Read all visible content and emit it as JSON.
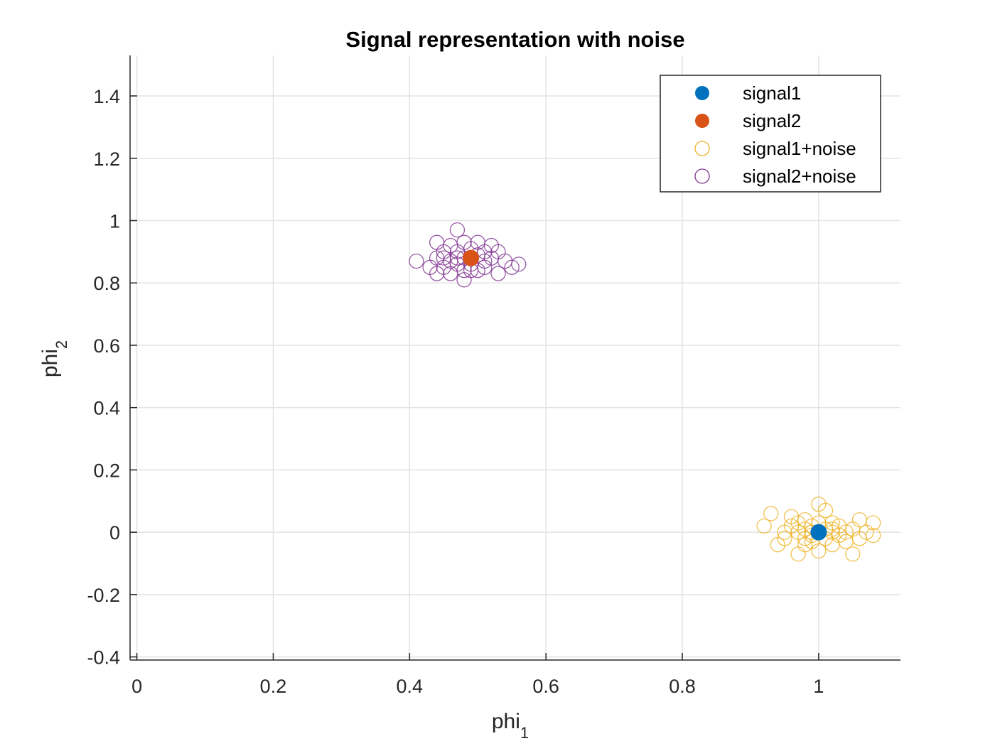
{
  "chart_data": {
    "type": "scatter",
    "title": "Signal representation with noise",
    "xlabel": {
      "base": "phi",
      "sub": "1"
    },
    "ylabel": {
      "base": "phi",
      "sub": "2"
    },
    "xlim": [
      -0.01,
      1.12
    ],
    "ylim": [
      -0.41,
      1.53
    ],
    "xticks": [
      0,
      0.2,
      0.4,
      0.6,
      0.8,
      1
    ],
    "xtick_labels": [
      "0",
      "0.2",
      "0.4",
      "0.6",
      "0.8",
      "1"
    ],
    "yticks": [
      -0.4,
      -0.2,
      0,
      0.2,
      0.4,
      0.6,
      0.8,
      1,
      1.2,
      1.4
    ],
    "ytick_labels": [
      "-0.4",
      "-0.2",
      "0",
      "0.2",
      "0.4",
      "0.6",
      "0.8",
      "1",
      "1.2",
      "1.4"
    ],
    "grid": true,
    "legend_position": "top-right",
    "series": [
      {
        "name": "signal1",
        "marker": "filled-circle",
        "color": "#0072BD",
        "points": [
          [
            1.0,
            0.0
          ]
        ]
      },
      {
        "name": "signal2",
        "marker": "filled-circle",
        "color": "#D95319",
        "points": [
          [
            0.49,
            0.88
          ]
        ]
      },
      {
        "name": "signal1+noise",
        "marker": "open-circle",
        "color": "#EDB120",
        "points": [
          [
            0.92,
            0.02
          ],
          [
            0.93,
            0.06
          ],
          [
            0.94,
            -0.04
          ],
          [
            0.95,
            0.0
          ],
          [
            0.95,
            -0.02
          ],
          [
            0.96,
            0.02
          ],
          [
            0.96,
            0.05
          ],
          [
            0.97,
            -0.07
          ],
          [
            0.97,
            0.0
          ],
          [
            0.97,
            0.03
          ],
          [
            0.98,
            -0.02
          ],
          [
            0.98,
            0.01
          ],
          [
            0.98,
            0.04
          ],
          [
            0.99,
            -0.03
          ],
          [
            0.99,
            0.0
          ],
          [
            0.99,
            0.02
          ],
          [
            1.0,
            0.09
          ],
          [
            1.0,
            -0.06
          ],
          [
            1.0,
            0.0
          ],
          [
            1.0,
            0.03
          ],
          [
            1.01,
            -0.02
          ],
          [
            1.01,
            0.01
          ],
          [
            1.01,
            0.07
          ],
          [
            1.02,
            -0.04
          ],
          [
            1.02,
            0.0
          ],
          [
            1.02,
            0.03
          ],
          [
            1.03,
            -0.01
          ],
          [
            1.03,
            0.02
          ],
          [
            1.04,
            0.0
          ],
          [
            1.04,
            -0.03
          ],
          [
            1.05,
            -0.07
          ],
          [
            1.05,
            0.01
          ],
          [
            1.06,
            0.04
          ],
          [
            1.06,
            -0.02
          ],
          [
            1.07,
            0.0
          ],
          [
            1.08,
            0.03
          ],
          [
            1.08,
            -0.01
          ],
          [
            0.99,
            -0.01
          ],
          [
            1.02,
            0.01
          ],
          [
            0.98,
            -0.04
          ]
        ]
      },
      {
        "name": "signal2+noise",
        "marker": "open-circle",
        "color": "#7E2F8E",
        "points": [
          [
            0.41,
            0.87
          ],
          [
            0.43,
            0.85
          ],
          [
            0.44,
            0.93
          ],
          [
            0.44,
            0.88
          ],
          [
            0.44,
            0.83
          ],
          [
            0.45,
            0.9
          ],
          [
            0.45,
            0.85
          ],
          [
            0.46,
            0.92
          ],
          [
            0.46,
            0.87
          ],
          [
            0.46,
            0.83
          ],
          [
            0.47,
            0.97
          ],
          [
            0.47,
            0.9
          ],
          [
            0.47,
            0.86
          ],
          [
            0.48,
            0.93
          ],
          [
            0.48,
            0.88
          ],
          [
            0.48,
            0.81
          ],
          [
            0.48,
            0.84
          ],
          [
            0.49,
            0.91
          ],
          [
            0.49,
            0.86
          ],
          [
            0.5,
            0.89
          ],
          [
            0.5,
            0.84
          ],
          [
            0.5,
            0.93
          ],
          [
            0.51,
            0.87
          ],
          [
            0.51,
            0.85
          ],
          [
            0.52,
            0.92
          ],
          [
            0.52,
            0.88
          ],
          [
            0.53,
            0.9
          ],
          [
            0.53,
            0.83
          ],
          [
            0.54,
            0.87
          ],
          [
            0.55,
            0.85
          ],
          [
            0.56,
            0.86
          ],
          [
            0.45,
            0.88
          ],
          [
            0.47,
            0.88
          ],
          [
            0.49,
            0.84
          ],
          [
            0.51,
            0.9
          ]
        ]
      }
    ]
  }
}
